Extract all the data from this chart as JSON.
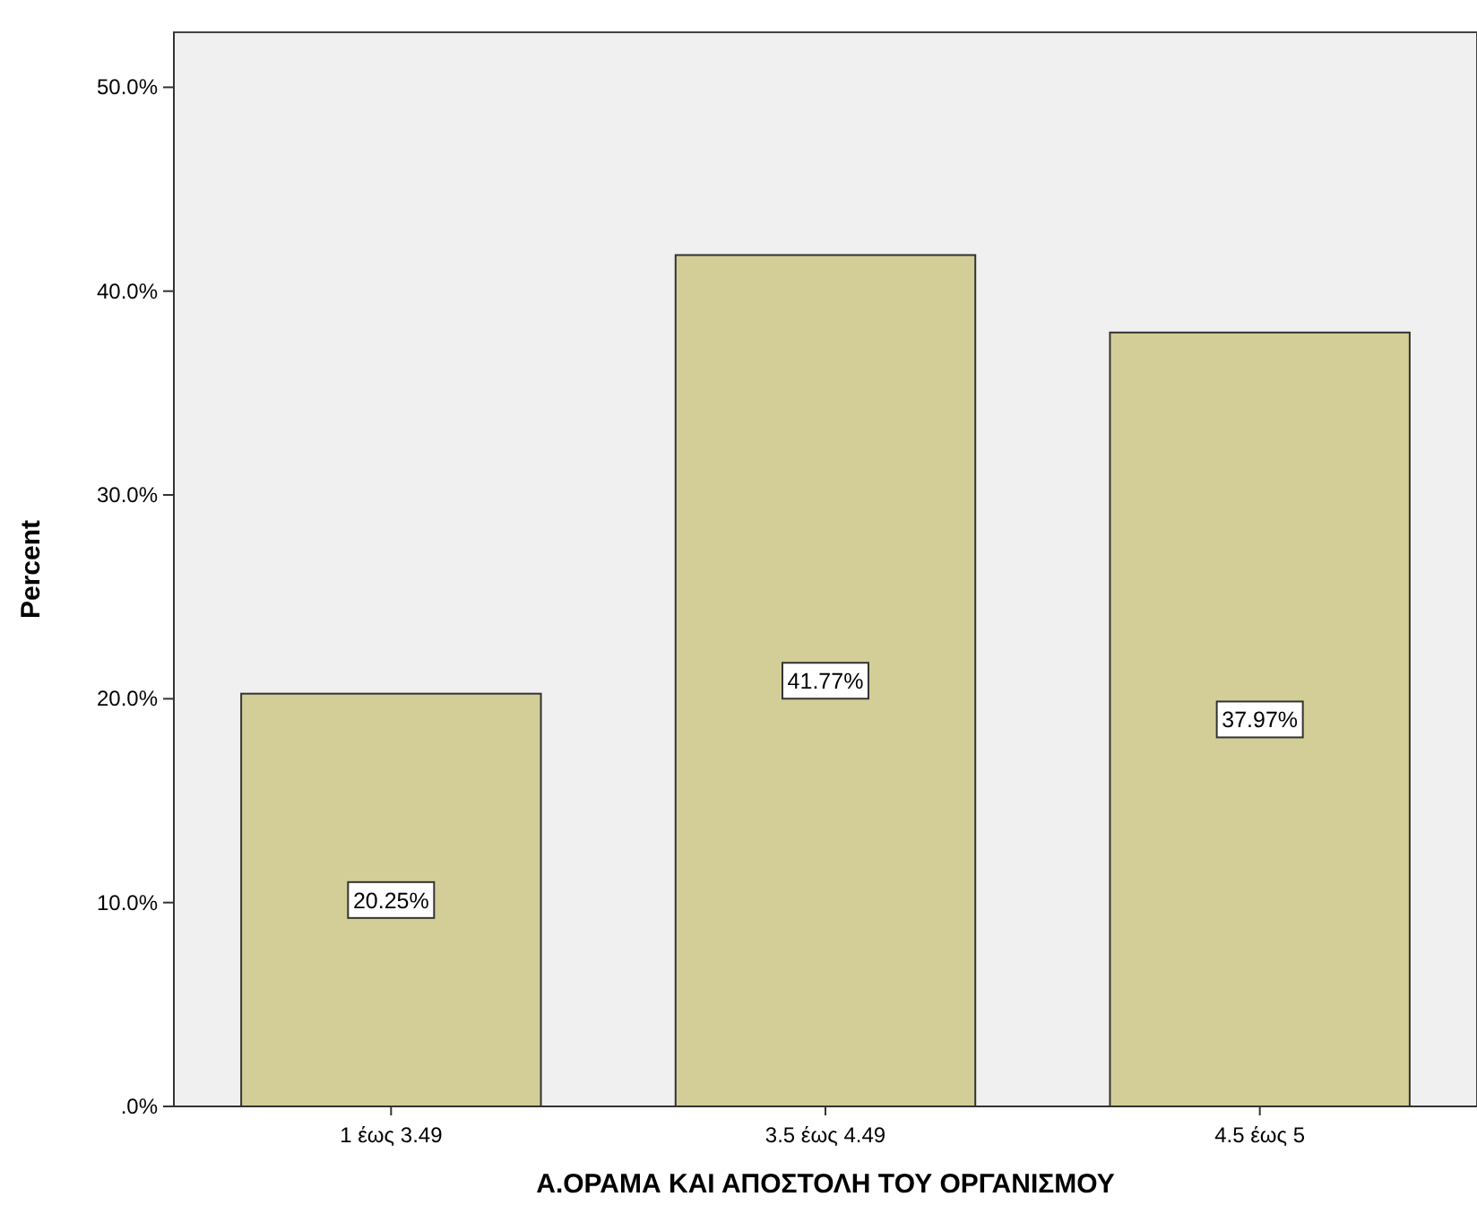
{
  "chart_data": {
    "type": "bar",
    "xlabel": "Α.ΟΡΑΜΑ ΚΑΙ ΑΠΟΣΤΟΛΗ ΤΟΥ ΟΡΓΑΝΙΣΜΟΥ",
    "ylabel": "Percent",
    "categories": [
      "1 έως 3.49",
      "3.5 έως 4.49",
      "4.5 έως 5"
    ],
    "values": [
      20.25,
      41.77,
      37.97
    ],
    "value_labels": [
      "20.25%",
      "41.77%",
      "37.97%"
    ],
    "color": "#d3ce97",
    "ylim": [
      0,
      52.7
    ],
    "yticks": [
      {
        "value": 0,
        "label": ".0%"
      },
      {
        "value": 10,
        "label": "10.0%"
      },
      {
        "value": 20,
        "label": "20.0%"
      },
      {
        "value": 30,
        "label": "30.0%"
      },
      {
        "value": 40,
        "label": "40.0%"
      },
      {
        "value": 50,
        "label": "50.0%"
      }
    ],
    "grid": false
  }
}
